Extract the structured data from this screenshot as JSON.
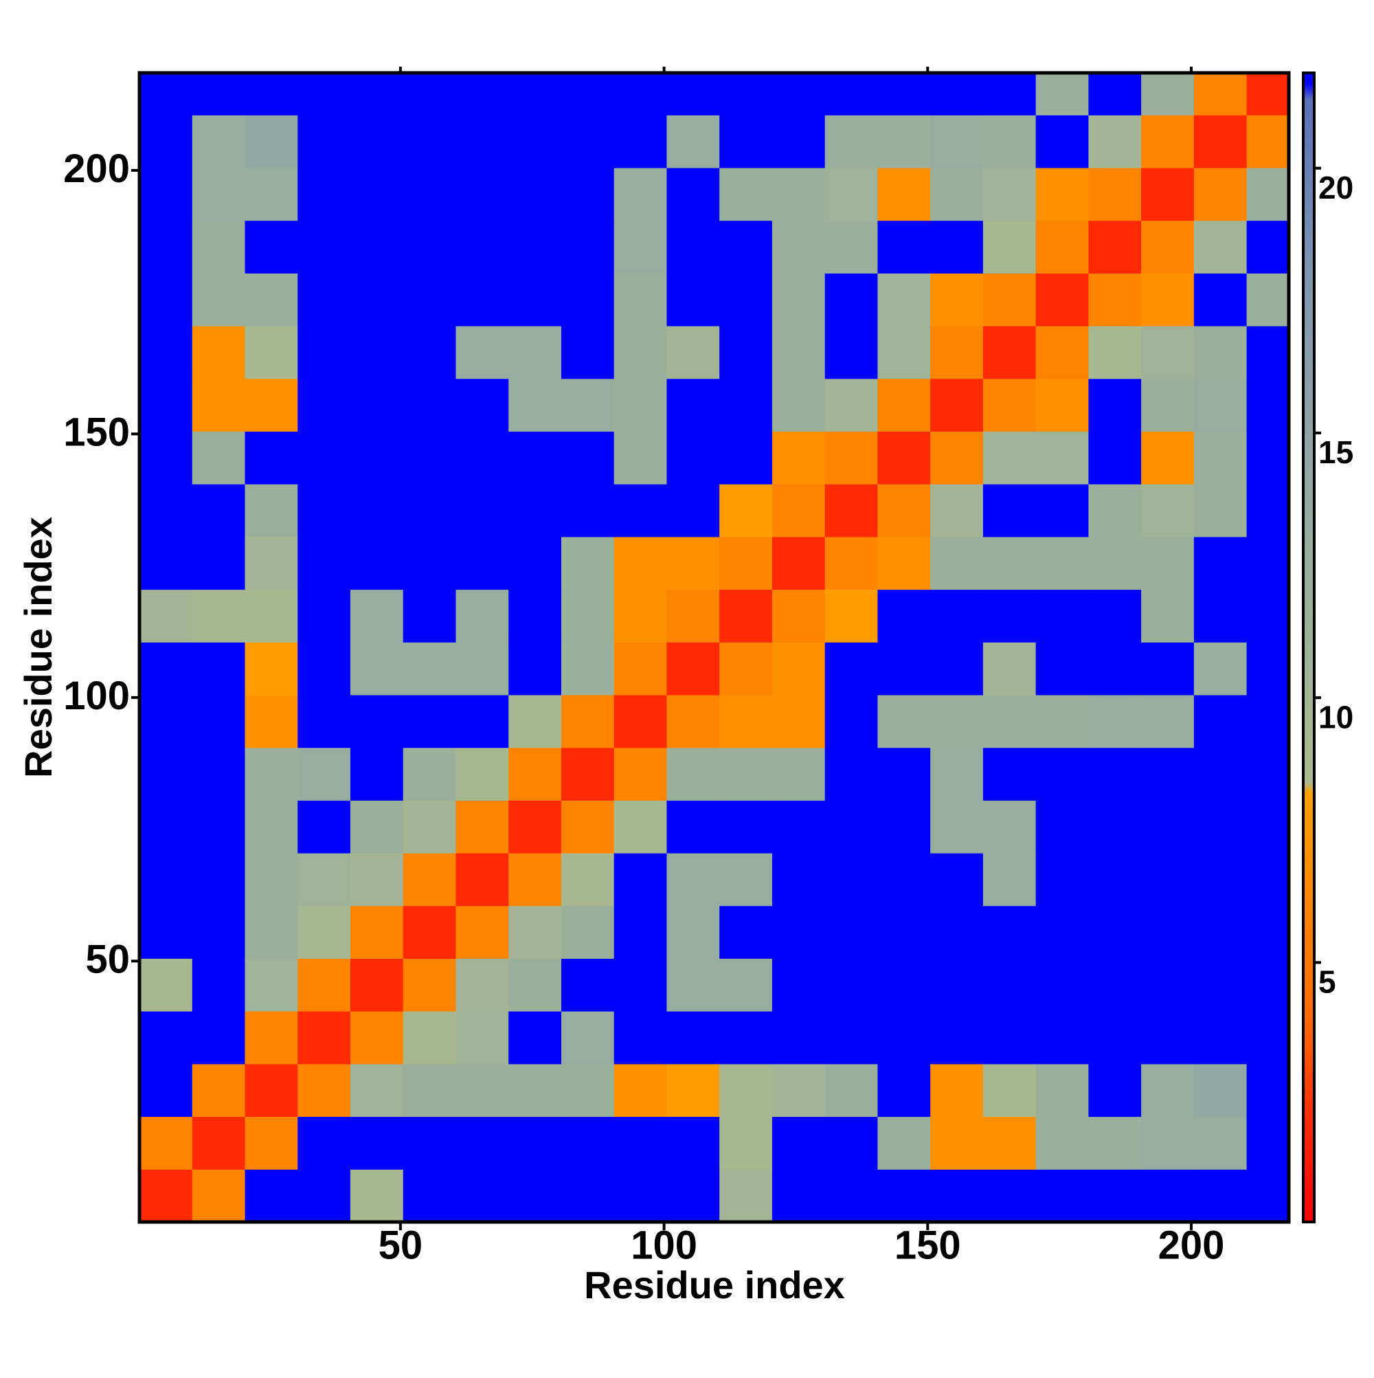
{
  "chart_data": {
    "type": "heatmap",
    "xlabel": "Residue index",
    "ylabel": "Residue index",
    "x_bins": [
      0.5,
      10.5,
      20.5,
      30.5,
      40.5,
      50.5,
      60.5,
      70.5,
      80.5,
      90.5,
      100.5,
      110.5,
      120.5,
      130.5,
      140.5,
      150.5,
      160.5,
      170.5,
      180.5,
      190.5,
      200.5,
      210.5,
      218.5
    ],
    "y_bins": [
      0.5,
      10.5,
      20.5,
      30.5,
      40.5,
      50.5,
      60.5,
      70.5,
      80.5,
      90.5,
      100.5,
      110.5,
      120.5,
      130.5,
      140.5,
      150.5,
      160.5,
      170.5,
      180.5,
      190.5,
      200.5,
      210.5,
      218.5
    ],
    "values": [
      [
        2,
        6,
        21.8,
        21.8,
        9,
        21.8,
        21.8,
        21.8,
        21.8,
        21.8,
        21.8,
        10,
        21.8,
        21.8,
        21.8,
        21.8,
        21.8,
        21.8,
        21.8,
        21.8,
        21.8,
        21.8
      ],
      [
        6,
        2,
        6,
        21.8,
        21.8,
        21.8,
        21.8,
        21.8,
        21.8,
        21.8,
        21.8,
        9,
        21.8,
        21.8,
        12,
        7,
        7,
        12,
        12,
        13,
        13,
        21.8
      ],
      [
        21.8,
        6,
        2,
        6,
        11,
        12,
        12,
        12,
        12,
        7,
        8,
        9,
        10,
        12,
        21.8,
        7,
        9,
        12,
        21.8,
        13,
        14,
        21.8
      ],
      [
        21.8,
        21.8,
        6,
        2,
        6,
        9,
        11,
        21.8,
        13,
        21.8,
        21.8,
        21.8,
        21.8,
        21.8,
        21.8,
        21.8,
        21.8,
        21.8,
        21.8,
        21.8,
        21.8,
        21.8
      ],
      [
        9,
        21.8,
        11,
        6,
        2,
        6,
        10,
        12,
        21.8,
        21.8,
        13,
        13,
        21.8,
        21.8,
        21.8,
        21.8,
        21.8,
        21.8,
        21.8,
        21.8,
        21.8,
        21.8
      ],
      [
        21.8,
        21.8,
        12,
        9,
        6,
        2,
        6,
        10,
        12,
        21.8,
        13,
        21.8,
        21.8,
        21.8,
        21.8,
        21.8,
        21.8,
        21.8,
        21.8,
        21.8,
        21.8,
        21.8
      ],
      [
        21.8,
        21.8,
        12,
        11,
        10,
        6,
        2,
        6,
        9,
        21.8,
        13,
        13,
        21.8,
        21.8,
        21.8,
        21.8,
        13,
        21.8,
        21.8,
        21.8,
        21.8,
        21.8
      ],
      [
        21.8,
        21.8,
        12,
        21.8,
        12,
        10,
        6,
        2,
        6,
        9,
        21.8,
        21.8,
        21.8,
        21.8,
        21.8,
        13,
        13,
        21.8,
        21.8,
        21.8,
        21.8,
        21.8
      ],
      [
        21.8,
        21.8,
        12,
        13,
        21.8,
        12,
        9,
        6,
        2,
        6,
        12,
        12,
        12,
        21.8,
        21.8,
        13,
        21.8,
        21.8,
        21.8,
        21.8,
        21.8,
        21.8
      ],
      [
        21.8,
        21.8,
        7,
        21.8,
        21.8,
        21.8,
        21.8,
        9,
        6,
        2,
        6,
        7,
        7,
        21.8,
        12,
        12,
        12,
        12,
        13,
        13,
        21.8,
        21.8
      ],
      [
        21.8,
        21.8,
        8,
        21.8,
        13,
        13,
        13,
        21.8,
        12,
        6,
        2,
        6,
        7,
        21.8,
        21.8,
        21.8,
        10,
        21.8,
        21.8,
        21.8,
        13,
        21.8
      ],
      [
        10,
        9,
        9,
        21.8,
        13,
        21.8,
        13,
        21.8,
        12,
        7,
        6,
        2,
        6,
        8,
        21.8,
        21.8,
        21.8,
        21.8,
        21.8,
        12,
        21.8,
        21.8
      ],
      [
        21.8,
        21.8,
        10,
        21.8,
        21.8,
        21.8,
        21.8,
        21.8,
        12,
        7,
        7,
        6,
        2,
        6,
        7,
        12,
        12,
        12,
        12,
        12,
        21.8,
        21.8
      ],
      [
        21.8,
        21.8,
        12,
        21.8,
        21.8,
        21.8,
        21.8,
        21.8,
        21.8,
        21.8,
        21.8,
        8,
        6,
        2,
        6,
        10,
        21.8,
        21.8,
        12,
        11,
        12,
        21.8
      ],
      [
        21.8,
        12,
        21.8,
        21.8,
        21.8,
        21.8,
        21.8,
        21.8,
        21.8,
        12,
        21.8,
        21.8,
        7,
        6,
        2,
        6,
        11,
        11,
        21.8,
        7,
        12,
        21.8
      ],
      [
        21.8,
        7,
        7,
        21.8,
        21.8,
        21.8,
        21.8,
        13,
        13,
        12,
        21.8,
        21.8,
        12,
        10,
        6,
        2,
        6,
        7,
        21.8,
        12,
        13,
        21.8
      ],
      [
        21.8,
        7,
        9,
        21.8,
        21.8,
        21.8,
        13,
        13,
        21.8,
        12,
        10,
        21.8,
        12,
        21.8,
        11,
        6,
        2,
        6,
        9,
        11,
        12,
        21.8
      ],
      [
        21.8,
        12,
        12,
        21.8,
        21.8,
        21.8,
        21.8,
        21.8,
        21.8,
        12,
        21.8,
        21.8,
        12,
        21.8,
        11,
        7,
        6,
        2,
        6,
        7,
        21.8,
        12
      ],
      [
        21.8,
        12,
        21.8,
        21.8,
        21.8,
        21.8,
        21.8,
        21.8,
        21.8,
        13,
        21.8,
        21.8,
        12,
        12,
        21.8,
        21.8,
        9,
        6,
        2,
        6,
        10,
        21.8
      ],
      [
        21.8,
        13,
        13,
        21.8,
        21.8,
        21.8,
        21.8,
        21.8,
        21.8,
        13,
        21.8,
        12,
        12,
        11,
        7,
        12,
        11,
        7,
        6,
        2,
        6,
        12
      ],
      [
        21.8,
        13,
        14,
        21.8,
        21.8,
        21.8,
        21.8,
        21.8,
        21.8,
        21.8,
        13,
        21.8,
        21.8,
        12,
        12,
        13,
        12,
        21.8,
        10,
        6,
        2,
        6
      ],
      [
        21.8,
        21.8,
        21.8,
        21.8,
        21.8,
        21.8,
        21.8,
        21.8,
        21.8,
        21.8,
        21.8,
        21.8,
        21.8,
        21.8,
        21.8,
        21.8,
        21.8,
        12,
        21.8,
        12,
        6,
        2
      ]
    ],
    "xlim": [
      0.5,
      218.5
    ],
    "ylim": [
      0.5,
      218.5
    ],
    "xticks": [
      50,
      100,
      150,
      200
    ],
    "yticks": [
      50,
      100,
      150,
      200
    ],
    "zlim": [
      0.1,
      21.8
    ],
    "zticks": [
      5,
      10,
      15,
      20
    ],
    "colorscale": [
      [
        0,
        "#ff0000"
      ],
      [
        2,
        "#ff2a00"
      ],
      [
        4,
        "#ff6a00"
      ],
      [
        8.2,
        "#ffa000"
      ],
      [
        8.4,
        "#a9ba8e"
      ],
      [
        13,
        "#97ad9f"
      ],
      [
        18,
        "#7f96b0"
      ],
      [
        21.3,
        "#5a70b8"
      ],
      [
        21.6,
        "#0000ff"
      ],
      [
        21.8,
        "#0000ff"
      ]
    ]
  }
}
